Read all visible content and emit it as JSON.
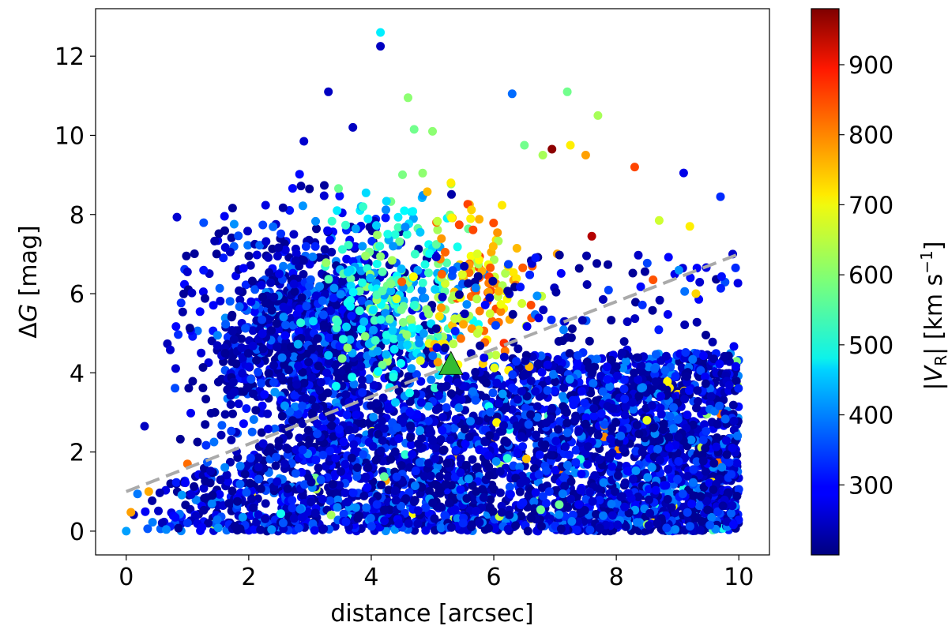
{
  "chart_data": {
    "type": "scatter",
    "xlabel": "distance [arcsec]",
    "ylabel_prefix": "Δ",
    "ylabel_italic": "G",
    "ylabel_suffix": " [mag]",
    "xlim": [
      -0.5,
      10.5
    ],
    "ylim": [
      -0.6,
      13.2
    ],
    "xticks": [
      0,
      2,
      4,
      6,
      8,
      10
    ],
    "yticks": [
      0,
      2,
      4,
      6,
      8,
      10,
      12
    ],
    "grid": false,
    "colormap": "jet",
    "colorbar": {
      "label_prefix": "|",
      "label_italic": "V",
      "label_sub": "R",
      "label_mid": "| [km s",
      "label_sup": "−1",
      "label_suffix": "]",
      "range": [
        200,
        980
      ],
      "ticks": [
        300,
        400,
        500,
        600,
        700,
        800,
        900
      ]
    },
    "reference_line": {
      "style": "dashed",
      "color": "#aaaaaa",
      "x": [
        0,
        10
      ],
      "y": [
        1,
        7
      ]
    },
    "highlight_point": {
      "marker": "triangle",
      "color": "#33bb33",
      "x": 5.3,
      "y": 4.2
    },
    "notable_points": [
      {
        "x": 0.0,
        "y": 0.0,
        "v": 420
      },
      {
        "x": 0.3,
        "y": 2.65,
        "v": 250
      },
      {
        "x": 0.8,
        "y": 0.35,
        "v": 300
      },
      {
        "x": 1.0,
        "y": 6.55,
        "v": 260
      },
      {
        "x": 1.0,
        "y": 1.7,
        "v": 800
      },
      {
        "x": 2.5,
        "y": 6.5,
        "v": 280
      },
      {
        "x": 2.9,
        "y": 9.85,
        "v": 260
      },
      {
        "x": 3.3,
        "y": 11.1,
        "v": 250
      },
      {
        "x": 3.7,
        "y": 10.2,
        "v": 250
      },
      {
        "x": 4.15,
        "y": 12.6,
        "v": 480
      },
      {
        "x": 4.15,
        "y": 12.25,
        "v": 250
      },
      {
        "x": 4.6,
        "y": 10.95,
        "v": 600
      },
      {
        "x": 4.7,
        "y": 10.15,
        "v": 580
      },
      {
        "x": 5.0,
        "y": 10.1,
        "v": 600
      },
      {
        "x": 5.3,
        "y": 8.8,
        "v": 700
      },
      {
        "x": 6.3,
        "y": 11.05,
        "v": 380
      },
      {
        "x": 6.5,
        "y": 9.75,
        "v": 580
      },
      {
        "x": 6.8,
        "y": 9.5,
        "v": 620
      },
      {
        "x": 6.95,
        "y": 9.65,
        "v": 970
      },
      {
        "x": 7.2,
        "y": 11.1,
        "v": 580
      },
      {
        "x": 7.25,
        "y": 9.75,
        "v": 700
      },
      {
        "x": 7.5,
        "y": 9.5,
        "v": 760
      },
      {
        "x": 7.7,
        "y": 10.5,
        "v": 620
      },
      {
        "x": 7.6,
        "y": 7.45,
        "v": 940
      },
      {
        "x": 8.3,
        "y": 9.2,
        "v": 830
      },
      {
        "x": 8.7,
        "y": 7.85,
        "v": 650
      },
      {
        "x": 9.1,
        "y": 9.05,
        "v": 280
      },
      {
        "x": 9.2,
        "y": 7.7,
        "v": 700
      },
      {
        "x": 9.7,
        "y": 8.45,
        "v": 330
      },
      {
        "x": 9.3,
        "y": 6.0,
        "v": 720
      },
      {
        "x": 8.6,
        "y": 6.35,
        "v": 820
      },
      {
        "x": 9.9,
        "y": 7.0,
        "v": 260
      }
    ]
  }
}
